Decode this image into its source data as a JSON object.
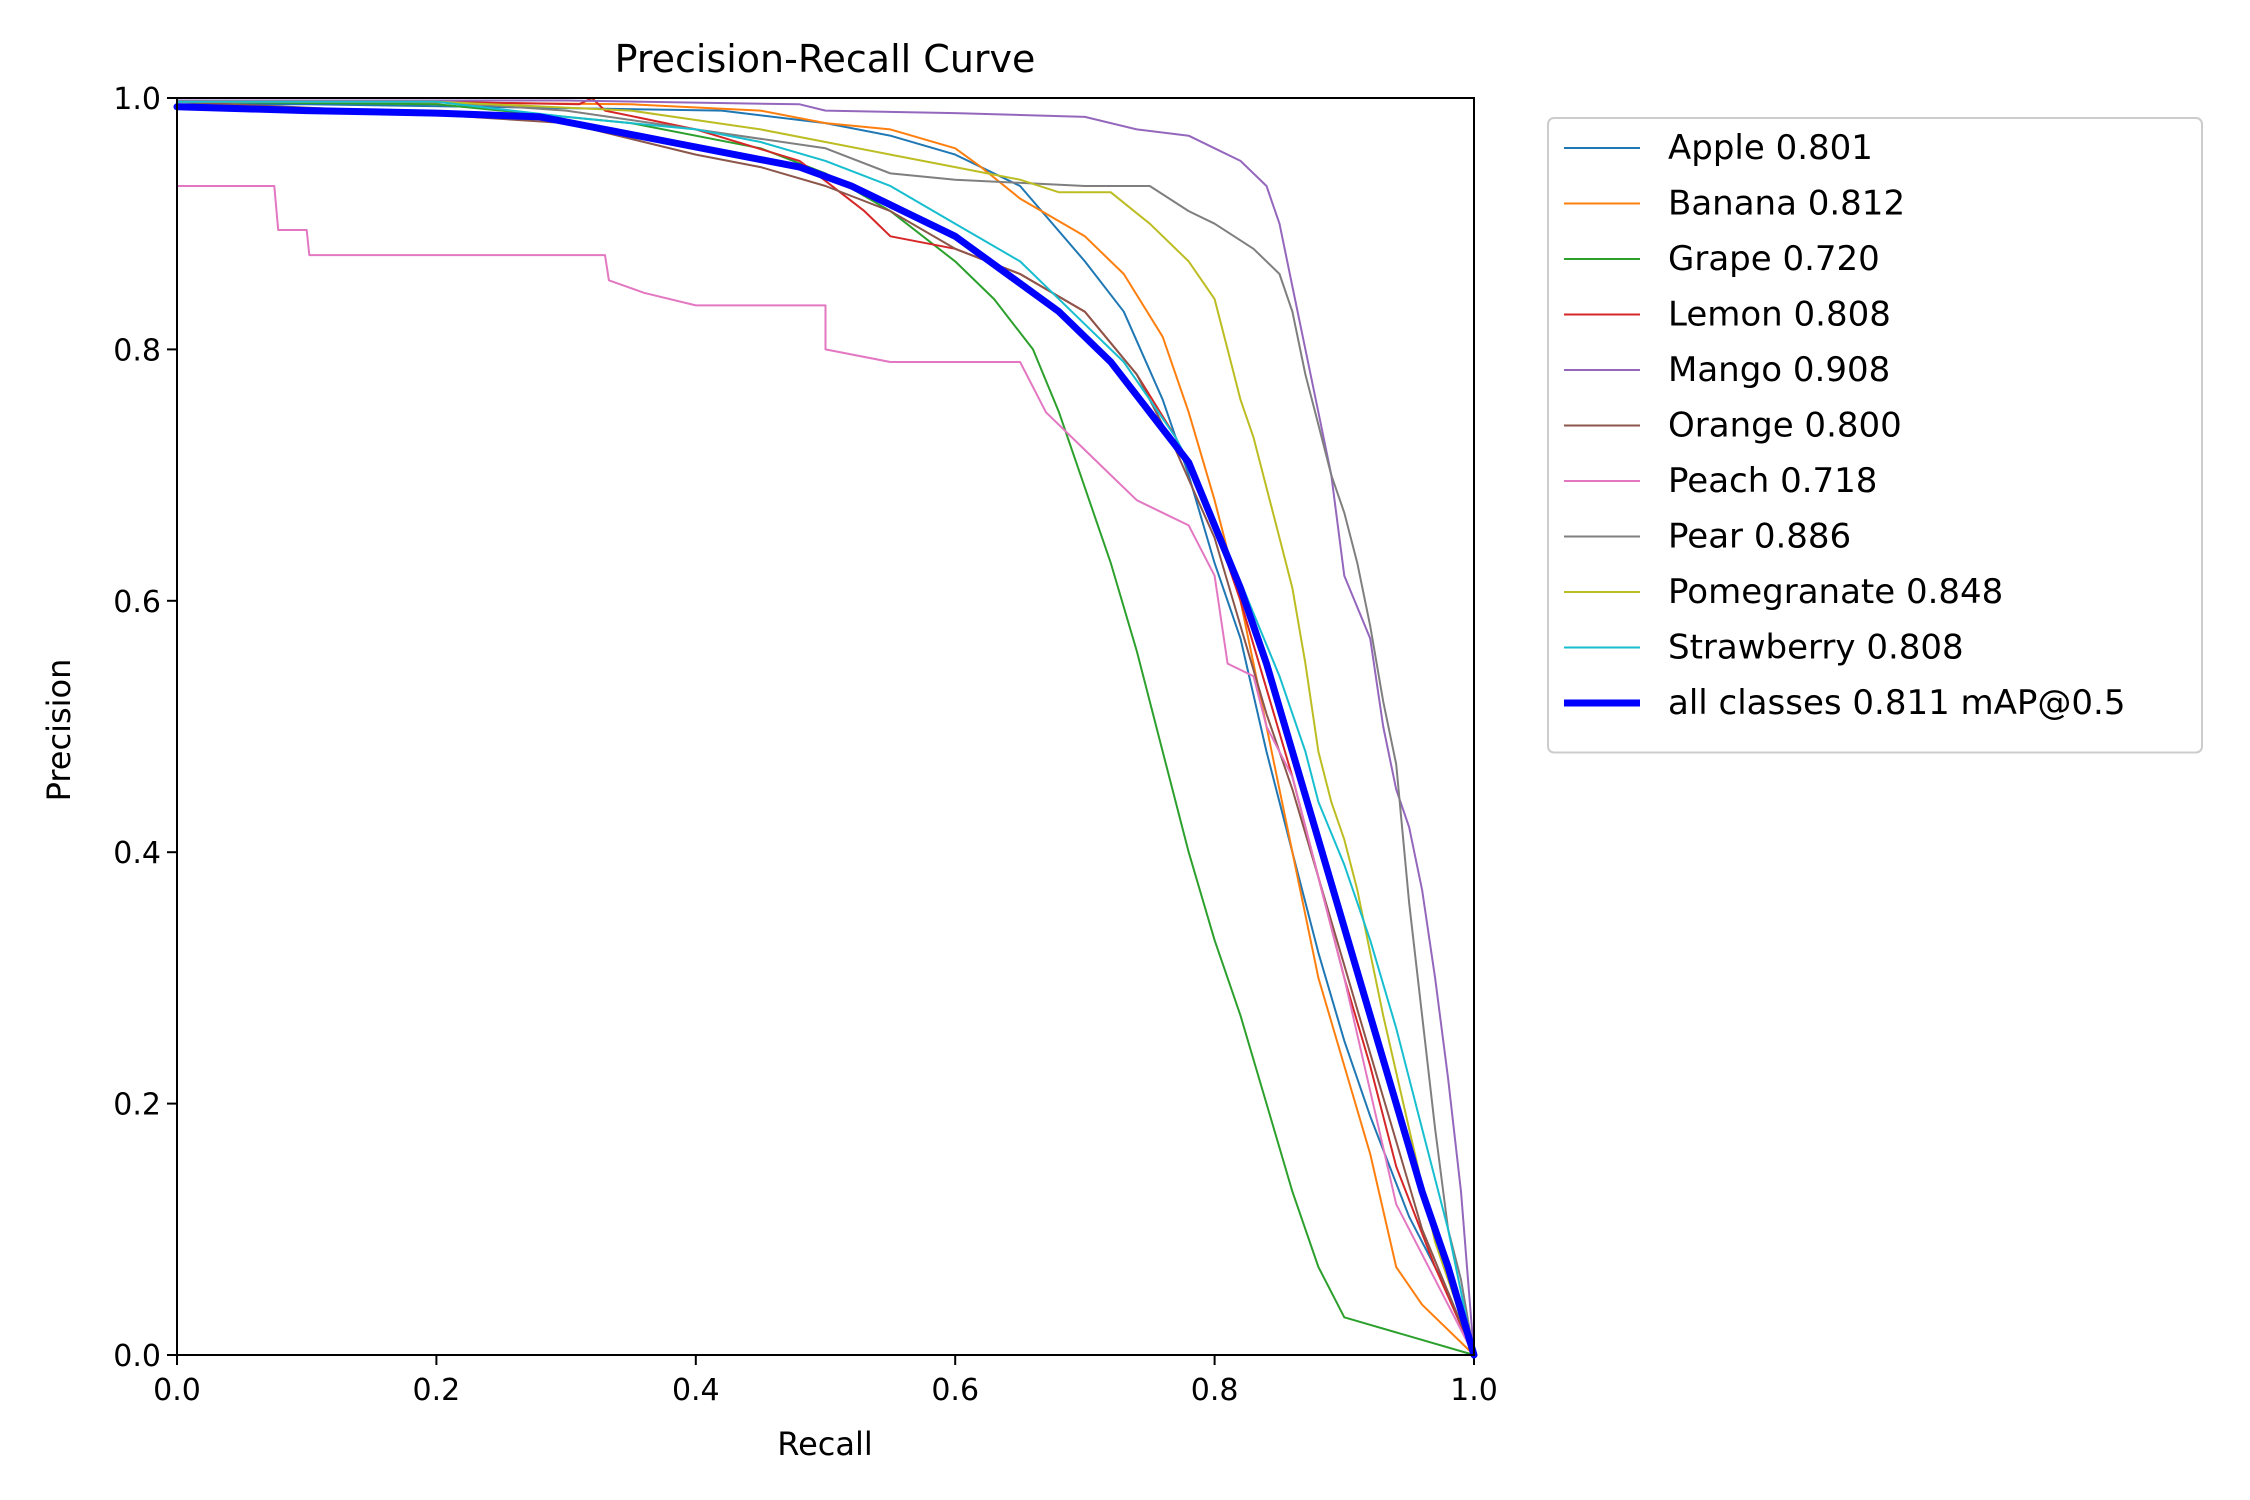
{
  "chart_data": {
    "type": "line",
    "title": "Precision-Recall Curve",
    "xlabel": "Recall",
    "ylabel": "Precision",
    "xlim": [
      0.0,
      1.0
    ],
    "ylim": [
      0.0,
      1.0
    ],
    "grid": false,
    "legend_position": "outside-right",
    "xticks": [
      "0.0",
      "0.2",
      "0.4",
      "0.6",
      "0.8",
      "1.0"
    ],
    "yticks": [
      "0.0",
      "0.2",
      "0.4",
      "0.6",
      "0.8",
      "1.0"
    ],
    "series": [
      {
        "name": "Apple",
        "label": "Apple 0.801",
        "color": "#1f77b4",
        "thick": false,
        "points": [
          [
            0,
            0.995
          ],
          [
            0.1,
            0.995
          ],
          [
            0.3,
            0.992
          ],
          [
            0.42,
            0.99
          ],
          [
            0.5,
            0.98
          ],
          [
            0.55,
            0.97
          ],
          [
            0.6,
            0.955
          ],
          [
            0.65,
            0.93
          ],
          [
            0.7,
            0.87
          ],
          [
            0.73,
            0.83
          ],
          [
            0.76,
            0.76
          ],
          [
            0.78,
            0.7
          ],
          [
            0.8,
            0.63
          ],
          [
            0.82,
            0.57
          ],
          [
            0.84,
            0.48
          ],
          [
            0.86,
            0.4
          ],
          [
            0.88,
            0.32
          ],
          [
            0.9,
            0.25
          ],
          [
            0.92,
            0.19
          ],
          [
            0.95,
            0.11
          ],
          [
            0.98,
            0.05
          ],
          [
            1.0,
            0.0
          ]
        ]
      },
      {
        "name": "Banana",
        "label": "Banana 0.812",
        "color": "#ff7f0e",
        "thick": false,
        "points": [
          [
            0,
            0.997
          ],
          [
            0.15,
            0.997
          ],
          [
            0.35,
            0.995
          ],
          [
            0.45,
            0.99
          ],
          [
            0.5,
            0.98
          ],
          [
            0.55,
            0.975
          ],
          [
            0.6,
            0.96
          ],
          [
            0.62,
            0.945
          ],
          [
            0.65,
            0.92
          ],
          [
            0.7,
            0.89
          ],
          [
            0.73,
            0.86
          ],
          [
            0.76,
            0.81
          ],
          [
            0.78,
            0.75
          ],
          [
            0.8,
            0.68
          ],
          [
            0.82,
            0.6
          ],
          [
            0.84,
            0.5
          ],
          [
            0.86,
            0.4
          ],
          [
            0.88,
            0.3
          ],
          [
            0.9,
            0.23
          ],
          [
            0.92,
            0.16
          ],
          [
            0.94,
            0.07
          ],
          [
            0.96,
            0.04
          ],
          [
            1.0,
            0.0
          ]
        ]
      },
      {
        "name": "Grape",
        "label": "Grape 0.720",
        "color": "#2ca02c",
        "thick": false,
        "points": [
          [
            0,
            0.997
          ],
          [
            0.2,
            0.995
          ],
          [
            0.35,
            0.98
          ],
          [
            0.45,
            0.96
          ],
          [
            0.5,
            0.94
          ],
          [
            0.55,
            0.91
          ],
          [
            0.6,
            0.87
          ],
          [
            0.63,
            0.84
          ],
          [
            0.66,
            0.8
          ],
          [
            0.68,
            0.75
          ],
          [
            0.7,
            0.69
          ],
          [
            0.72,
            0.63
          ],
          [
            0.74,
            0.56
          ],
          [
            0.76,
            0.48
          ],
          [
            0.78,
            0.4
          ],
          [
            0.8,
            0.33
          ],
          [
            0.82,
            0.27
          ],
          [
            0.84,
            0.2
          ],
          [
            0.86,
            0.13
          ],
          [
            0.88,
            0.07
          ],
          [
            0.9,
            0.03
          ],
          [
            1.0,
            0.0
          ]
        ]
      },
      {
        "name": "Lemon",
        "label": "Lemon 0.808",
        "color": "#d62728",
        "thick": false,
        "points": [
          [
            0,
            0.997
          ],
          [
            0.2,
            0.997
          ],
          [
            0.31,
            0.995
          ],
          [
            0.32,
            1.0
          ],
          [
            0.33,
            0.99
          ],
          [
            0.4,
            0.975
          ],
          [
            0.48,
            0.95
          ],
          [
            0.53,
            0.91
          ],
          [
            0.55,
            0.89
          ],
          [
            0.6,
            0.88
          ],
          [
            0.65,
            0.86
          ],
          [
            0.7,
            0.83
          ],
          [
            0.74,
            0.78
          ],
          [
            0.77,
            0.73
          ],
          [
            0.8,
            0.66
          ],
          [
            0.82,
            0.6
          ],
          [
            0.84,
            0.53
          ],
          [
            0.86,
            0.46
          ],
          [
            0.88,
            0.38
          ],
          [
            0.9,
            0.3
          ],
          [
            0.92,
            0.23
          ],
          [
            0.94,
            0.15
          ],
          [
            0.97,
            0.07
          ],
          [
            1.0,
            0.0
          ]
        ]
      },
      {
        "name": "Mango",
        "label": "Mango 0.908",
        "color": "#9467bd",
        "thick": false,
        "points": [
          [
            0,
            0.998
          ],
          [
            0.3,
            0.998
          ],
          [
            0.48,
            0.995
          ],
          [
            0.5,
            0.99
          ],
          [
            0.6,
            0.988
          ],
          [
            0.7,
            0.985
          ],
          [
            0.74,
            0.975
          ],
          [
            0.78,
            0.97
          ],
          [
            0.8,
            0.96
          ],
          [
            0.82,
            0.95
          ],
          [
            0.84,
            0.93
          ],
          [
            0.85,
            0.9
          ],
          [
            0.86,
            0.85
          ],
          [
            0.87,
            0.8
          ],
          [
            0.88,
            0.75
          ],
          [
            0.89,
            0.7
          ],
          [
            0.9,
            0.62
          ],
          [
            0.92,
            0.57
          ],
          [
            0.93,
            0.5
          ],
          [
            0.94,
            0.45
          ],
          [
            0.95,
            0.42
          ],
          [
            0.96,
            0.37
          ],
          [
            0.97,
            0.3
          ],
          [
            0.98,
            0.22
          ],
          [
            0.99,
            0.13
          ],
          [
            1.0,
            0.0
          ]
        ]
      },
      {
        "name": "Orange",
        "label": "Orange 0.800",
        "color": "#8c564b",
        "thick": false,
        "points": [
          [
            0,
            0.997
          ],
          [
            0.15,
            0.99
          ],
          [
            0.3,
            0.98
          ],
          [
            0.4,
            0.955
          ],
          [
            0.45,
            0.945
          ],
          [
            0.5,
            0.93
          ],
          [
            0.55,
            0.91
          ],
          [
            0.6,
            0.88
          ],
          [
            0.65,
            0.86
          ],
          [
            0.7,
            0.83
          ],
          [
            0.74,
            0.78
          ],
          [
            0.77,
            0.72
          ],
          [
            0.8,
            0.65
          ],
          [
            0.82,
            0.58
          ],
          [
            0.84,
            0.51
          ],
          [
            0.86,
            0.45
          ],
          [
            0.88,
            0.38
          ],
          [
            0.9,
            0.31
          ],
          [
            0.92,
            0.24
          ],
          [
            0.94,
            0.17
          ],
          [
            0.96,
            0.1
          ],
          [
            0.98,
            0.05
          ],
          [
            1.0,
            0.0
          ]
        ]
      },
      {
        "name": "Peach",
        "label": "Peach 0.718",
        "color": "#e377c2",
        "thick": false,
        "points": [
          [
            0,
            0.93
          ],
          [
            0.075,
            0.93
          ],
          [
            0.078,
            0.895
          ],
          [
            0.1,
            0.895
          ],
          [
            0.102,
            0.875
          ],
          [
            0.33,
            0.875
          ],
          [
            0.333,
            0.855
          ],
          [
            0.36,
            0.845
          ],
          [
            0.4,
            0.835
          ],
          [
            0.5,
            0.835
          ],
          [
            0.5,
            0.82
          ],
          [
            0.5,
            0.8
          ],
          [
            0.55,
            0.79
          ],
          [
            0.6,
            0.79
          ],
          [
            0.65,
            0.79
          ],
          [
            0.67,
            0.75
          ],
          [
            0.7,
            0.72
          ],
          [
            0.72,
            0.7
          ],
          [
            0.74,
            0.68
          ],
          [
            0.76,
            0.67
          ],
          [
            0.78,
            0.66
          ],
          [
            0.8,
            0.62
          ],
          [
            0.81,
            0.55
          ],
          [
            0.83,
            0.54
          ],
          [
            0.84,
            0.5
          ],
          [
            0.86,
            0.46
          ],
          [
            0.88,
            0.38
          ],
          [
            0.9,
            0.3
          ],
          [
            0.92,
            0.21
          ],
          [
            0.94,
            0.12
          ],
          [
            0.97,
            0.06
          ],
          [
            1.0,
            0.0
          ]
        ]
      },
      {
        "name": "Pear",
        "label": "Pear 0.886",
        "color": "#7f7f7f",
        "thick": false,
        "points": [
          [
            0,
            0.997
          ],
          [
            0.2,
            0.997
          ],
          [
            0.3,
            0.99
          ],
          [
            0.4,
            0.975
          ],
          [
            0.5,
            0.96
          ],
          [
            0.55,
            0.94
          ],
          [
            0.6,
            0.935
          ],
          [
            0.7,
            0.93
          ],
          [
            0.75,
            0.93
          ],
          [
            0.78,
            0.91
          ],
          [
            0.8,
            0.9
          ],
          [
            0.83,
            0.88
          ],
          [
            0.85,
            0.86
          ],
          [
            0.86,
            0.83
          ],
          [
            0.87,
            0.78
          ],
          [
            0.88,
            0.74
          ],
          [
            0.89,
            0.7
          ],
          [
            0.9,
            0.67
          ],
          [
            0.91,
            0.63
          ],
          [
            0.92,
            0.58
          ],
          [
            0.93,
            0.52
          ],
          [
            0.94,
            0.47
          ],
          [
            0.95,
            0.36
          ],
          [
            0.96,
            0.27
          ],
          [
            0.97,
            0.18
          ],
          [
            0.98,
            0.1
          ],
          [
            0.99,
            0.06
          ],
          [
            1.0,
            0.0
          ]
        ]
      },
      {
        "name": "Pomegranate",
        "label": "Pomegranate 0.848",
        "color": "#bcbd22",
        "thick": false,
        "points": [
          [
            0,
            0.997
          ],
          [
            0.2,
            0.997
          ],
          [
            0.35,
            0.99
          ],
          [
            0.45,
            0.975
          ],
          [
            0.5,
            0.965
          ],
          [
            0.55,
            0.955
          ],
          [
            0.6,
            0.945
          ],
          [
            0.65,
            0.935
          ],
          [
            0.68,
            0.925
          ],
          [
            0.72,
            0.925
          ],
          [
            0.75,
            0.9
          ],
          [
            0.78,
            0.87
          ],
          [
            0.8,
            0.84
          ],
          [
            0.81,
            0.8
          ],
          [
            0.82,
            0.76
          ],
          [
            0.83,
            0.73
          ],
          [
            0.84,
            0.69
          ],
          [
            0.85,
            0.65
          ],
          [
            0.86,
            0.61
          ],
          [
            0.87,
            0.55
          ],
          [
            0.88,
            0.48
          ],
          [
            0.89,
            0.44
          ],
          [
            0.9,
            0.41
          ],
          [
            0.91,
            0.37
          ],
          [
            0.92,
            0.32
          ],
          [
            0.93,
            0.27
          ],
          [
            0.95,
            0.18
          ],
          [
            0.97,
            0.09
          ],
          [
            1.0,
            0.0
          ]
        ]
      },
      {
        "name": "Strawberry",
        "label": "Strawberry 0.808",
        "color": "#17becf",
        "thick": false,
        "points": [
          [
            0,
            0.997
          ],
          [
            0.2,
            0.997
          ],
          [
            0.3,
            0.985
          ],
          [
            0.4,
            0.975
          ],
          [
            0.45,
            0.965
          ],
          [
            0.5,
            0.95
          ],
          [
            0.55,
            0.93
          ],
          [
            0.6,
            0.9
          ],
          [
            0.65,
            0.87
          ],
          [
            0.7,
            0.82
          ],
          [
            0.73,
            0.79
          ],
          [
            0.75,
            0.76
          ],
          [
            0.77,
            0.73
          ],
          [
            0.79,
            0.69
          ],
          [
            0.81,
            0.64
          ],
          [
            0.83,
            0.59
          ],
          [
            0.85,
            0.54
          ],
          [
            0.87,
            0.48
          ],
          [
            0.88,
            0.44
          ],
          [
            0.9,
            0.39
          ],
          [
            0.92,
            0.33
          ],
          [
            0.94,
            0.26
          ],
          [
            0.96,
            0.18
          ],
          [
            0.98,
            0.1
          ],
          [
            1.0,
            0.0
          ]
        ]
      },
      {
        "name": "all classes",
        "label": "all classes 0.811 mAP@0.5",
        "color": "#0000ff",
        "thick": true,
        "points": [
          [
            0,
            0.993
          ],
          [
            0.1,
            0.99
          ],
          [
            0.2,
            0.988
          ],
          [
            0.28,
            0.985
          ],
          [
            0.33,
            0.975
          ],
          [
            0.38,
            0.965
          ],
          [
            0.43,
            0.955
          ],
          [
            0.48,
            0.945
          ],
          [
            0.52,
            0.93
          ],
          [
            0.56,
            0.91
          ],
          [
            0.6,
            0.89
          ],
          [
            0.64,
            0.86
          ],
          [
            0.68,
            0.83
          ],
          [
            0.72,
            0.79
          ],
          [
            0.75,
            0.75
          ],
          [
            0.78,
            0.71
          ],
          [
            0.8,
            0.66
          ],
          [
            0.82,
            0.61
          ],
          [
            0.84,
            0.55
          ],
          [
            0.86,
            0.48
          ],
          [
            0.88,
            0.41
          ],
          [
            0.9,
            0.34
          ],
          [
            0.92,
            0.27
          ],
          [
            0.94,
            0.2
          ],
          [
            0.96,
            0.13
          ],
          [
            0.98,
            0.07
          ],
          [
            1.0,
            0.0
          ]
        ]
      }
    ]
  }
}
